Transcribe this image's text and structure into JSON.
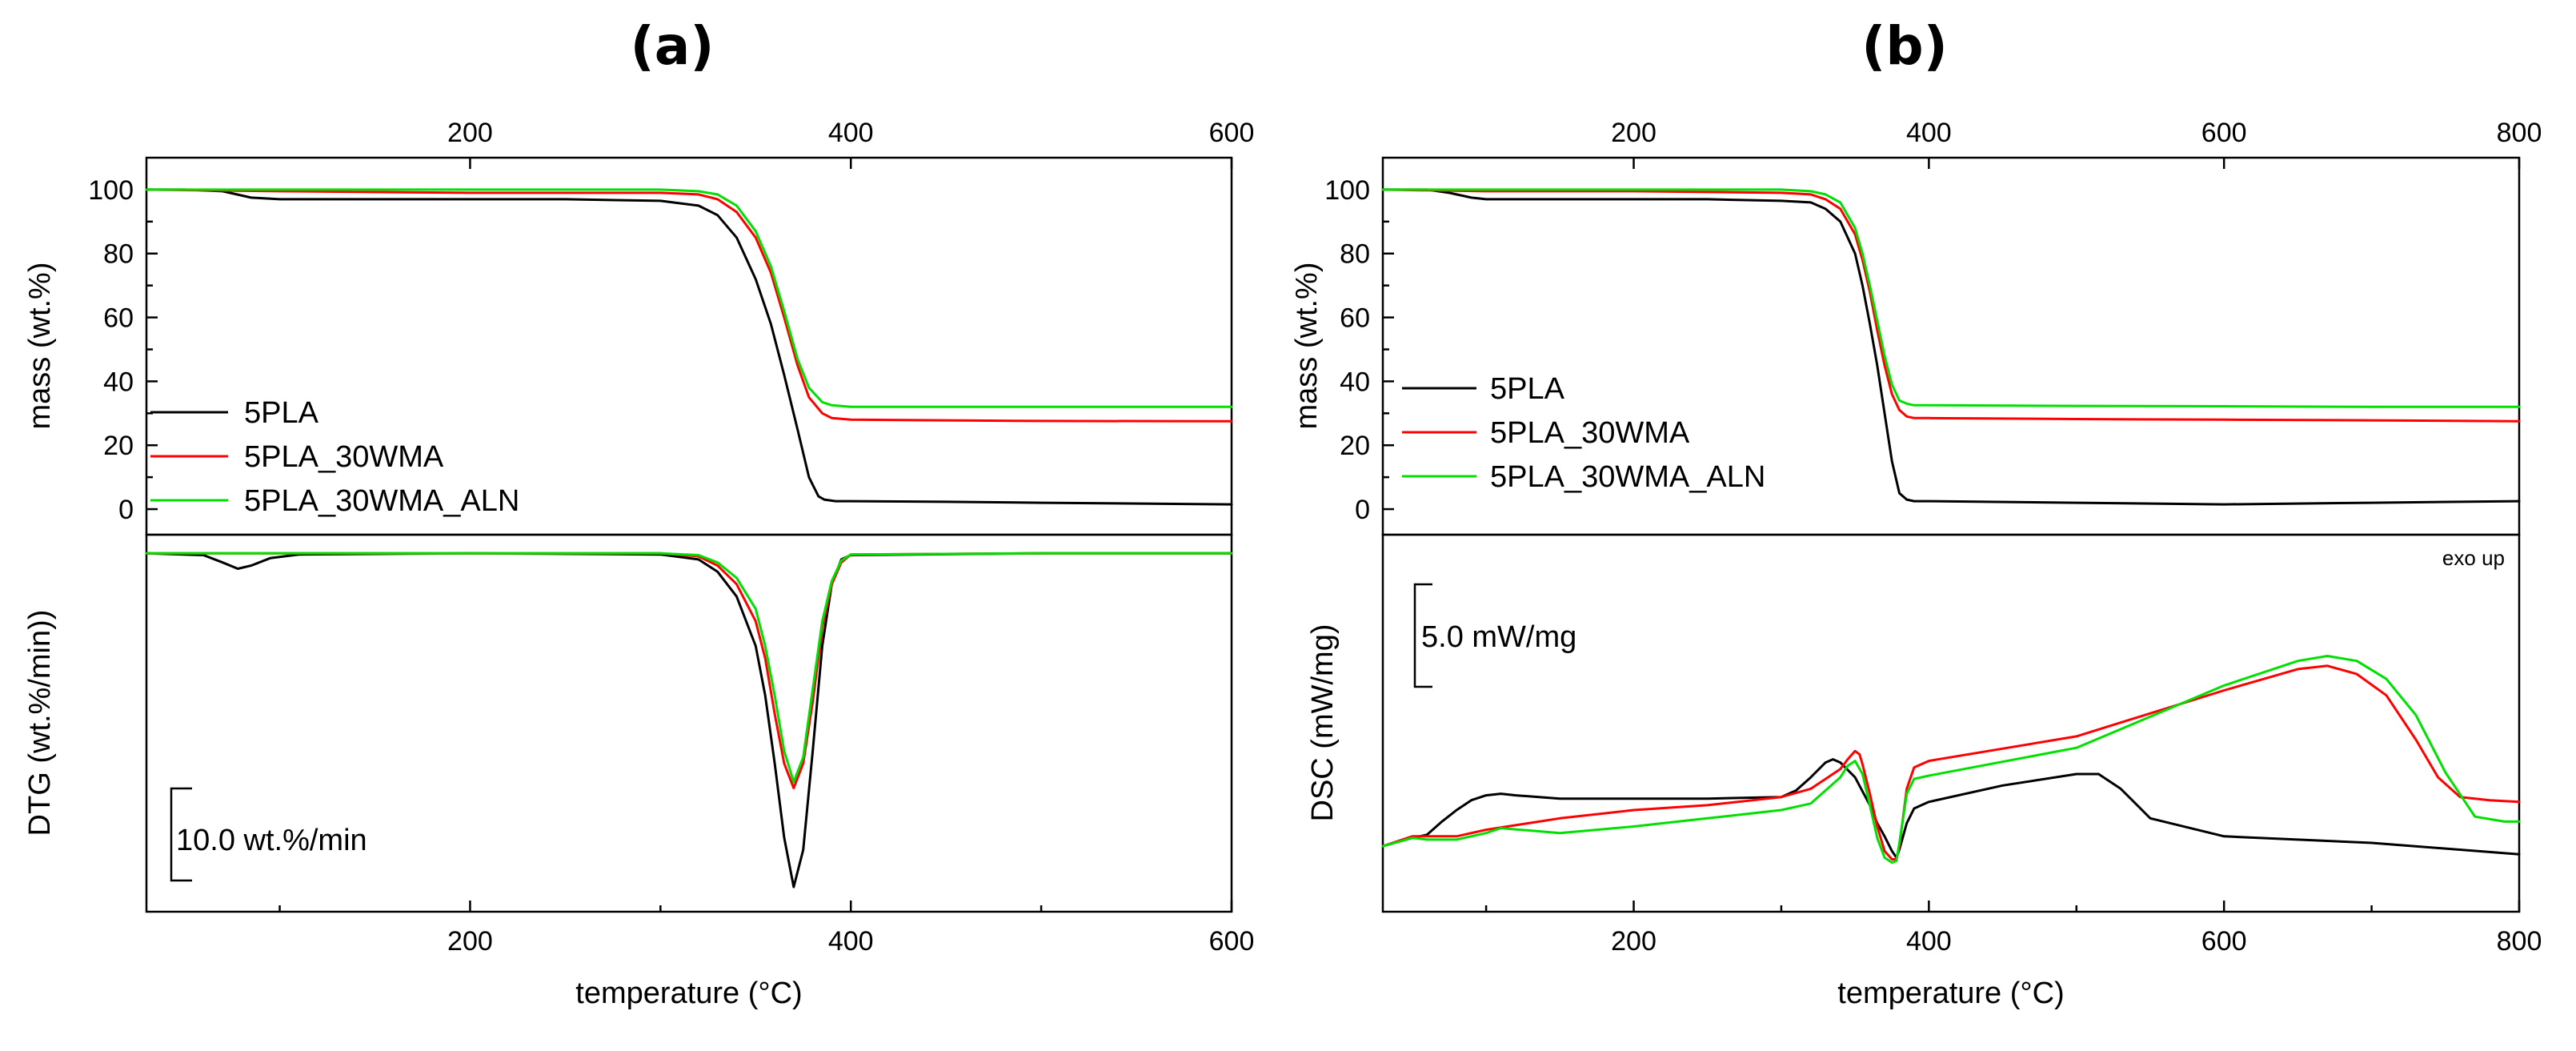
{
  "figure": {
    "panel_a_label": "(a)",
    "panel_b_label": "(b)"
  },
  "colors": {
    "5PLA": "#000000",
    "5PLA_30WMA": "#ff0000",
    "5PLA_30WMA_ALN": "#00e000"
  },
  "chart_data": [
    {
      "id": "a_tga",
      "panel": "a",
      "type": "line",
      "title": "",
      "xlabel": "",
      "ylabel": "mass (wt.%)",
      "xlim": [
        30,
        600
      ],
      "ylim": [
        -8,
        110
      ],
      "xticks_top": [
        200,
        400,
        600
      ],
      "yticks": [
        0,
        20,
        40,
        60,
        80,
        100
      ],
      "legend": {
        "placement": "lower-left",
        "entries": [
          "5PLA",
          "5PLA_30WMA",
          "5PLA_30WMA_ALN"
        ]
      },
      "series": [
        {
          "name": "5PLA",
          "x": [
            30,
            50,
            70,
            85,
            100,
            150,
            200,
            250,
            300,
            320,
            330,
            340,
            350,
            358,
            365,
            372,
            378,
            383,
            386,
            392,
            400,
            450,
            500,
            600
          ],
          "y": [
            100,
            100,
            99.5,
            97.5,
            97,
            97,
            97,
            97,
            96.5,
            95,
            92,
            85,
            72,
            58,
            42,
            25,
            10,
            4,
            3,
            2.5,
            2.5,
            2.3,
            2,
            1.5
          ]
        },
        {
          "name": "5PLA_30WMA",
          "x": [
            30,
            100,
            200,
            300,
            320,
            330,
            340,
            350,
            358,
            365,
            372,
            378,
            385,
            390,
            400,
            450,
            500,
            600
          ],
          "y": [
            100,
            99.5,
            99,
            99,
            98.5,
            97,
            93,
            85,
            74,
            60,
            45,
            35,
            30,
            28.5,
            28,
            27.8,
            27.6,
            27.5
          ]
        },
        {
          "name": "5PLA_30WMA_ALN",
          "x": [
            30,
            100,
            200,
            300,
            320,
            330,
            340,
            350,
            358,
            365,
            372,
            378,
            385,
            390,
            400,
            450,
            500,
            600
          ],
          "y": [
            100,
            100,
            100,
            100,
            99.5,
            98.5,
            95,
            87,
            76,
            62,
            47,
            38,
            33.5,
            32.5,
            32,
            32,
            32,
            32
          ]
        }
      ]
    },
    {
      "id": "a_dtg",
      "panel": "a",
      "type": "line",
      "title": "",
      "xlabel": "temperature (°C)",
      "ylabel": "DTG (wt.%/min))",
      "xlim": [
        30,
        600
      ],
      "ylim": [
        -58,
        3
      ],
      "xticks": [
        200,
        400,
        600
      ],
      "scale_bar": {
        "label": "10.0 wt.%/min",
        "value": 10.0
      },
      "series": [
        {
          "name": "5PLA",
          "x": [
            30,
            60,
            70,
            78,
            85,
            95,
            110,
            200,
            300,
            320,
            330,
            340,
            350,
            355,
            360,
            365,
            370,
            375,
            380,
            385,
            390,
            395,
            400,
            500,
            600
          ],
          "y": [
            0,
            -0.3,
            -1.5,
            -2.5,
            -2.0,
            -0.8,
            -0.2,
            0,
            -0.2,
            -1,
            -3,
            -7,
            -15,
            -23,
            -34,
            -46,
            -54,
            -48,
            -32,
            -15,
            -5,
            -1,
            -0.3,
            0,
            0
          ]
        },
        {
          "name": "5PLA_30WMA",
          "x": [
            30,
            300,
            320,
            330,
            340,
            350,
            355,
            360,
            365,
            370,
            375,
            380,
            385,
            390,
            395,
            400,
            500,
            600
          ],
          "y": [
            0,
            0,
            -0.5,
            -2,
            -5,
            -11,
            -17,
            -26,
            -34,
            -38,
            -34,
            -24,
            -12,
            -5,
            -1.5,
            -0.2,
            0,
            0
          ]
        },
        {
          "name": "5PLA_30WMA_ALN",
          "x": [
            30,
            300,
            320,
            330,
            340,
            350,
            355,
            360,
            365,
            370,
            375,
            380,
            385,
            390,
            395,
            400,
            500,
            600
          ],
          "y": [
            0,
            0,
            -0.3,
            -1.5,
            -4,
            -9,
            -15,
            -23,
            -32,
            -37,
            -33,
            -22,
            -11,
            -4.5,
            -1.2,
            -0.2,
            0,
            0
          ]
        }
      ]
    },
    {
      "id": "b_tga",
      "panel": "b",
      "type": "line",
      "title": "",
      "xlabel": "",
      "ylabel": "mass (wt.%)",
      "xlim": [
        30,
        800
      ],
      "ylim": [
        -8,
        110
      ],
      "xticks_top": [
        200,
        400,
        600,
        800
      ],
      "yticks": [
        0,
        20,
        40,
        60,
        80,
        100
      ],
      "legend": {
        "placement": "lower-left",
        "entries": [
          "5PLA",
          "5PLA_30WMA",
          "5PLA_30WMA_ALN"
        ]
      },
      "series": [
        {
          "name": "5PLA",
          "x": [
            30,
            60,
            75,
            90,
            100,
            150,
            200,
            250,
            300,
            320,
            330,
            340,
            350,
            355,
            360,
            365,
            370,
            375,
            380,
            385,
            390,
            400,
            500,
            600,
            700,
            800
          ],
          "y": [
            100,
            100,
            99,
            97.5,
            97,
            97,
            97,
            97,
            96.5,
            96,
            94,
            90,
            80,
            70,
            58,
            45,
            30,
            15,
            5,
            3,
            2.5,
            2.5,
            2,
            1.5,
            2,
            2.5
          ]
        },
        {
          "name": "5PLA_30WMA",
          "x": [
            30,
            100,
            200,
            300,
            320,
            330,
            340,
            350,
            355,
            360,
            365,
            370,
            375,
            380,
            385,
            390,
            400,
            500,
            600,
            700,
            800
          ],
          "y": [
            100,
            99.5,
            99.5,
            99,
            98.5,
            97,
            94,
            86,
            78,
            68,
            56,
            45,
            36,
            31,
            29,
            28.5,
            28.5,
            28.2,
            28,
            27.8,
            27.5
          ]
        },
        {
          "name": "5PLA_30WMA_ALN",
          "x": [
            30,
            100,
            200,
            300,
            320,
            330,
            340,
            350,
            355,
            360,
            365,
            370,
            375,
            380,
            385,
            390,
            400,
            500,
            600,
            700,
            800
          ],
          "y": [
            100,
            100,
            100,
            100,
            99.5,
            98.5,
            96,
            88,
            80,
            70,
            59,
            48,
            39,
            34,
            33,
            32.5,
            32.5,
            32.3,
            32.2,
            32,
            32
          ]
        }
      ]
    },
    {
      "id": "b_dsc",
      "panel": "b",
      "type": "line",
      "title": "",
      "xlabel": "temperature (°C)",
      "ylabel": "DSC (mW/mg)",
      "xlim": [
        30,
        800
      ],
      "ylim": [
        -13,
        10
      ],
      "xticks": [
        200,
        400,
        600,
        800
      ],
      "annotation": "exo up",
      "scale_bar": {
        "label": "5.0 mW/mg",
        "value": 5.0
      },
      "series": [
        {
          "name": "5PLA",
          "x": [
            30,
            50,
            60,
            70,
            80,
            90,
            100,
            110,
            120,
            150,
            200,
            250,
            300,
            310,
            320,
            330,
            335,
            340,
            350,
            360,
            365,
            370,
            375,
            378,
            380,
            385,
            390,
            400,
            450,
            500,
            515,
            530,
            550,
            600,
            700,
            800
          ],
          "y": [
            -9,
            -8.5,
            -8.3,
            -7.5,
            -6.8,
            -6.2,
            -5.9,
            -5.8,
            -5.9,
            -6.1,
            -6.1,
            -6.1,
            -6.0,
            -5.6,
            -4.8,
            -3.9,
            -3.7,
            -3.9,
            -4.8,
            -6.5,
            -7.6,
            -8.4,
            -9.3,
            -9.7,
            -9.2,
            -7.6,
            -6.7,
            -6.3,
            -5.3,
            -4.6,
            -4.6,
            -5.5,
            -7.3,
            -8.4,
            -8.8,
            -9.5
          ]
        },
        {
          "name": "5PLA_30WMA",
          "x": [
            30,
            50,
            60,
            80,
            100,
            150,
            200,
            250,
            300,
            320,
            340,
            345,
            350,
            353,
            355,
            360,
            365,
            370,
            375,
            378,
            380,
            385,
            390,
            400,
            500,
            600,
            650,
            670,
            690,
            710,
            730,
            745,
            760,
            780,
            800
          ],
          "y": [
            -9,
            -8.4,
            -8.4,
            -8.4,
            -8.0,
            -7.3,
            -6.8,
            -6.5,
            -6.0,
            -5.5,
            -4.3,
            -3.7,
            -3.2,
            -3.4,
            -4.0,
            -5.8,
            -7.8,
            -9.3,
            -9.8,
            -9.8,
            -9.0,
            -5.5,
            -4.2,
            -3.8,
            -2.3,
            0.5,
            1.8,
            2.0,
            1.5,
            0.2,
            -2.5,
            -4.8,
            -6.0,
            -6.2,
            -6.3
          ]
        },
        {
          "name": "5PLA_30WMA_ALN",
          "x": [
            30,
            50,
            60,
            80,
            100,
            110,
            150,
            200,
            250,
            300,
            320,
            340,
            345,
            350,
            355,
            360,
            365,
            370,
            375,
            378,
            380,
            385,
            390,
            400,
            500,
            600,
            650,
            670,
            690,
            710,
            730,
            750,
            770,
            790,
            800
          ],
          "y": [
            -9,
            -8.5,
            -8.6,
            -8.6,
            -8.2,
            -7.9,
            -8.2,
            -7.8,
            -7.3,
            -6.8,
            -6.4,
            -4.8,
            -4.1,
            -3.8,
            -4.6,
            -6.5,
            -8.5,
            -9.7,
            -10.0,
            -9.9,
            -8.8,
            -5.8,
            -4.9,
            -4.7,
            -3.0,
            0.8,
            2.3,
            2.6,
            2.3,
            1.2,
            -1.0,
            -4.5,
            -7.2,
            -7.5,
            -7.5
          ]
        }
      ]
    }
  ]
}
